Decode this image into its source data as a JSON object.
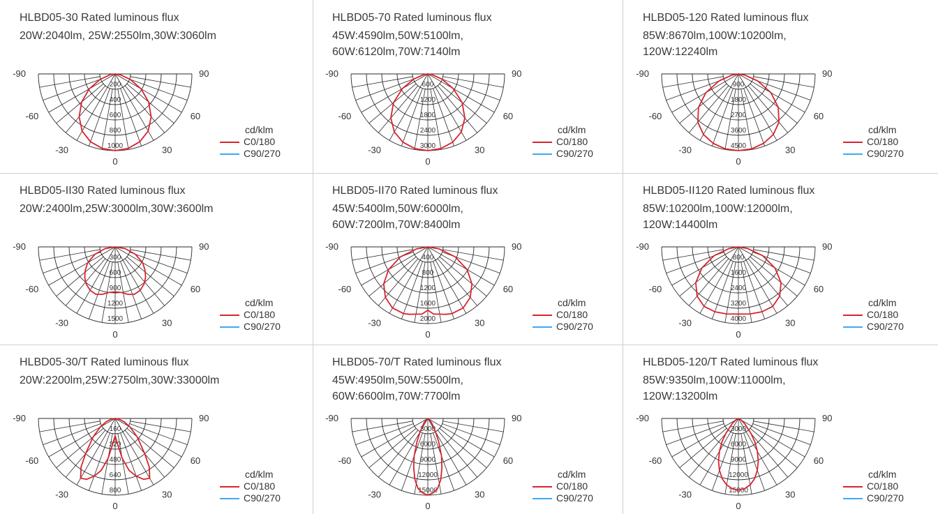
{
  "colors": {
    "c0_180": "#d9232d",
    "c90_270": "#3fa9f5",
    "grid": "#2a2a2a"
  },
  "legend": {
    "unit": "cd/klm",
    "c0": "C0/180",
    "c90": "C90/270"
  },
  "axis_labels": {
    "neg90": "-90",
    "pos90": "90",
    "neg60": "-60",
    "pos60": "60",
    "neg30": "-30",
    "pos30": "30",
    "zero": "0"
  },
  "chart_data": [
    {
      "type": "polar",
      "title": "HLBD05-30 Rated luminous flux",
      "flux": "20W:2040lm, 25W:2550lm,30W:3060lm",
      "rings": [
        "200",
        "400",
        "600",
        "800",
        "1000"
      ],
      "rmax": 1000,
      "series": [
        {
          "name": "C0/180",
          "angles": [
            0,
            10,
            20,
            30,
            40,
            50,
            60,
            70,
            80,
            90
          ],
          "values": [
            1000,
            985,
            940,
            860,
            730,
            570,
            390,
            210,
            70,
            0
          ]
        }
      ]
    },
    {
      "type": "polar",
      "title": "HLBD05-70 Rated luminous flux",
      "flux": "45W:4590lm,50W:5100lm,\n60W:6120lm,70W:7140lm",
      "rings": [
        "600",
        "1200",
        "1800",
        "2400",
        "3000"
      ],
      "rmax": 3000,
      "series": [
        {
          "name": "C0/180",
          "angles": [
            0,
            10,
            20,
            30,
            40,
            50,
            60,
            70,
            80,
            90
          ],
          "values": [
            3000,
            2960,
            2840,
            2620,
            2250,
            1750,
            1150,
            580,
            160,
            0
          ]
        }
      ]
    },
    {
      "type": "polar",
      "title": "HLBD05-120 Rated luminous flux",
      "flux": "85W:8670lm,100W:10200lm,\n120W:12240lm",
      "rings": [
        "900",
        "1800",
        "2700",
        "3600",
        "4500"
      ],
      "rmax": 4500,
      "series": [
        {
          "name": "C0/180",
          "angles": [
            0,
            10,
            20,
            30,
            40,
            50,
            60,
            70,
            80,
            90
          ],
          "values": [
            4500,
            4460,
            4330,
            4100,
            3700,
            3050,
            2200,
            1200,
            380,
            0
          ]
        }
      ]
    },
    {
      "type": "polar",
      "title": "HLBD05-II30 Rated luminous flux",
      "flux": "20W:2400lm,25W:3000lm,30W:3600lm",
      "rings": [
        "300",
        "600",
        "900",
        "1200",
        "1500"
      ],
      "rmax": 1500,
      "series": [
        {
          "name": "C0/180",
          "angles": [
            0,
            8,
            15,
            22,
            30,
            38,
            45,
            52,
            60,
            70,
            80,
            90
          ],
          "values": [
            880,
            900,
            960,
            1000,
            980,
            920,
            840,
            740,
            620,
            420,
            200,
            0
          ]
        }
      ]
    },
    {
      "type": "polar",
      "title": "HLBD05-II70 Rated luminous flux",
      "flux": "45W:5400lm,50W:6000lm,\n60W:7200lm,70W:8400lm",
      "rings": [
        "400",
        "800",
        "1200",
        "1600",
        "2000"
      ],
      "rmax": 2000,
      "series": [
        {
          "name": "C0/180",
          "angles": [
            0,
            5,
            10,
            15,
            20,
            30,
            40,
            50,
            60,
            70,
            80,
            90
          ],
          "values": [
            1650,
            1760,
            1780,
            1820,
            1850,
            1840,
            1720,
            1500,
            1180,
            760,
            300,
            0
          ]
        }
      ]
    },
    {
      "type": "polar",
      "title": "HLBD05-II120 Rated luminous flux",
      "flux": "85W:10200lm,100W:12000lm,\n120W:14400lm",
      "rings": [
        "800",
        "1600",
        "2400",
        "3200",
        "4000"
      ],
      "rmax": 4000,
      "series": [
        {
          "name": "C0/180",
          "angles": [
            0,
            10,
            20,
            30,
            40,
            50,
            60,
            70,
            80,
            90
          ],
          "values": [
            3500,
            3550,
            3600,
            3580,
            3350,
            2900,
            2200,
            1350,
            500,
            0
          ]
        }
      ]
    },
    {
      "type": "polar",
      "title": "HLBD05-30/T Rated luminous flux",
      "flux": "20W:2200lm,25W:2750lm,30W:33000lm",
      "rings": [
        "160",
        "320",
        "480",
        "640",
        "800"
      ],
      "rmax": 800,
      "series": [
        {
          "name": "C0/180",
          "angles": [
            0,
            5,
            10,
            15,
            20,
            25,
            30,
            35,
            40,
            50,
            60,
            70,
            80,
            90
          ],
          "values": [
            180,
            260,
            420,
            560,
            640,
            700,
            720,
            620,
            480,
            300,
            180,
            100,
            40,
            0
          ]
        }
      ]
    },
    {
      "type": "polar",
      "title": "HLBD05-70/T Rated luminous flux",
      "flux": "45W:4950lm,50W:5500lm,\n60W:6600lm,70W:7700lm",
      "rings": [
        "3000",
        "6000",
        "9000",
        "12000",
        "15000"
      ],
      "rmax": 15000,
      "series": [
        {
          "name": "C0/180",
          "angles": [
            0,
            4,
            8,
            12,
            16,
            20,
            25,
            30,
            40,
            50,
            60,
            90
          ],
          "values": [
            15000,
            14600,
            13800,
            12200,
            10000,
            7800,
            5000,
            3000,
            1200,
            400,
            100,
            0
          ]
        }
      ]
    },
    {
      "type": "polar",
      "title": "HLBD05-120/T Rated luminous flux",
      "flux": "85W:9350lm,100W:11000lm,\n120W:13200lm",
      "rings": [
        "3000",
        "6000",
        "9000",
        "12000",
        "15000"
      ],
      "rmax": 15000,
      "series": [
        {
          "name": "C0/180",
          "angles": [
            0,
            5,
            10,
            15,
            20,
            25,
            30,
            35,
            40,
            50,
            60,
            90
          ],
          "values": [
            14000,
            13800,
            13200,
            12200,
            10800,
            9200,
            7400,
            5600,
            3800,
            1600,
            500,
            0
          ]
        }
      ]
    }
  ]
}
